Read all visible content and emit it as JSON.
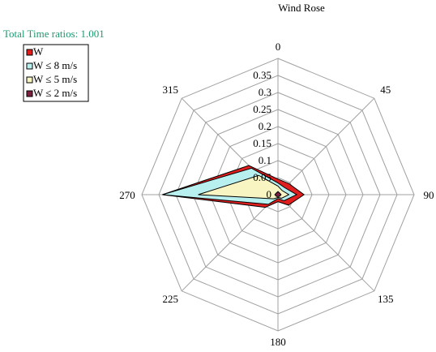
{
  "chart_data": {
    "type": "radar",
    "title": "Wind Rose",
    "annotation": "Total Time ratios: 1.001",
    "directions": [
      "0",
      "45",
      "90",
      "135",
      "180",
      "225",
      "270",
      "315"
    ],
    "radial_ticks": [
      "0",
      "0.05",
      "0.1",
      "0.15",
      "0.2",
      "0.25",
      "0.3",
      "0.35"
    ],
    "rlim": [
      0,
      0.35
    ],
    "grid": true,
    "legend_position": "top-left",
    "series": [
      {
        "name": "W",
        "color": "#e01e1e",
        "values": [
          0.04,
          0.04,
          0.067,
          0.038,
          0.018,
          0.046,
          0.297,
          0.106
        ]
      },
      {
        "name": "W ≤ 8 m/s",
        "color": "#b8f0f0",
        "values": [
          0.03,
          0.025,
          0.048,
          0.022,
          0.01,
          0.035,
          0.297,
          0.096
        ]
      },
      {
        "name": "W ≤ 5 m/s",
        "color": "#f8f5c2",
        "values": [
          0.022,
          0.015,
          0.028,
          0.013,
          0.007,
          0.015,
          0.205,
          0.07
        ]
      },
      {
        "name": "W ≤ 2 m/s",
        "color": "#7a2040",
        "values": [
          0.008,
          0.006,
          0.008,
          0.006,
          0.005,
          0.006,
          0.008,
          0.006
        ]
      }
    ]
  }
}
